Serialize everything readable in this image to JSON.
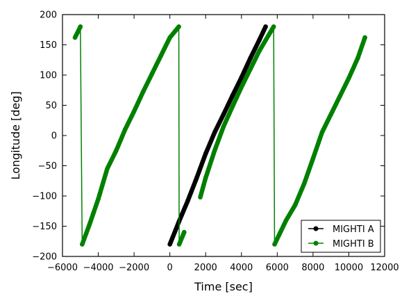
{
  "chart_data": {
    "type": "line",
    "title": "",
    "xlabel": "Time [sec]",
    "ylabel": "Longitude [deg]",
    "xlim": [
      -6000,
      12000
    ],
    "ylim": [
      -200,
      200
    ],
    "xticks": [
      -6000,
      -4000,
      -2000,
      0,
      2000,
      4000,
      6000,
      8000,
      10000,
      12000
    ],
    "yticks": [
      -200,
      -150,
      -100,
      -50,
      0,
      50,
      100,
      150,
      200
    ],
    "xtick_labels": [
      "−6000",
      "−4000",
      "−2000",
      "0",
      "2000",
      "4000",
      "6000",
      "8000",
      "10000",
      "12000"
    ],
    "ytick_labels": [
      "−200",
      "−150",
      "−100",
      "−50",
      "0",
      "50",
      "100",
      "150",
      "200"
    ],
    "grid": false,
    "legend_position": "lower-right",
    "series": [
      {
        "name": "MIGHTI A",
        "color": "#000000",
        "marker": "circle",
        "segments": [
          [
            [
              0,
              -180
            ],
            [
              500,
              -143
            ],
            [
              1000,
              -108
            ],
            [
              1500,
              -70
            ],
            [
              2000,
              -30
            ],
            [
              2500,
              5
            ],
            [
              3000,
              35
            ],
            [
              3500,
              66
            ],
            [
              4000,
              96
            ],
            [
              4500,
              128
            ],
            [
              5000,
              158
            ],
            [
              5350,
              180
            ]
          ]
        ]
      },
      {
        "name": "MIGHTI B",
        "color": "#008000",
        "marker": "circle",
        "segments": [
          [
            [
              -5300,
              162
            ],
            [
              -5000,
              180
            ],
            [
              -4900,
              -180
            ],
            [
              -4500,
              -148
            ],
            [
              -4000,
              -105
            ],
            [
              -3500,
              -55
            ],
            [
              -3000,
              -25
            ],
            [
              -2500,
              10
            ],
            [
              -2000,
              40
            ],
            [
              -1500,
              72
            ],
            [
              -1000,
              102
            ],
            [
              -500,
              132
            ],
            [
              0,
              162
            ],
            [
              500,
              180
            ],
            [
              520,
              -180
            ],
            [
              800,
              -160
            ]
          ],
          [
            [
              1700,
              -102
            ],
            [
              2000,
              -70
            ],
            [
              2500,
              -25
            ],
            [
              3000,
              15
            ],
            [
              3500,
              48
            ],
            [
              4000,
              80
            ],
            [
              4500,
              110
            ],
            [
              5000,
              140
            ],
            [
              5500,
              165
            ],
            [
              5800,
              180
            ],
            [
              5850,
              -180
            ],
            [
              6500,
              -140
            ],
            [
              7000,
              -115
            ],
            [
              7500,
              -80
            ],
            [
              8000,
              -38
            ],
            [
              8500,
              5
            ],
            [
              9000,
              35
            ],
            [
              9500,
              65
            ],
            [
              10000,
              95
            ],
            [
              10500,
              128
            ],
            [
              10900,
              162
            ]
          ]
        ]
      }
    ]
  }
}
